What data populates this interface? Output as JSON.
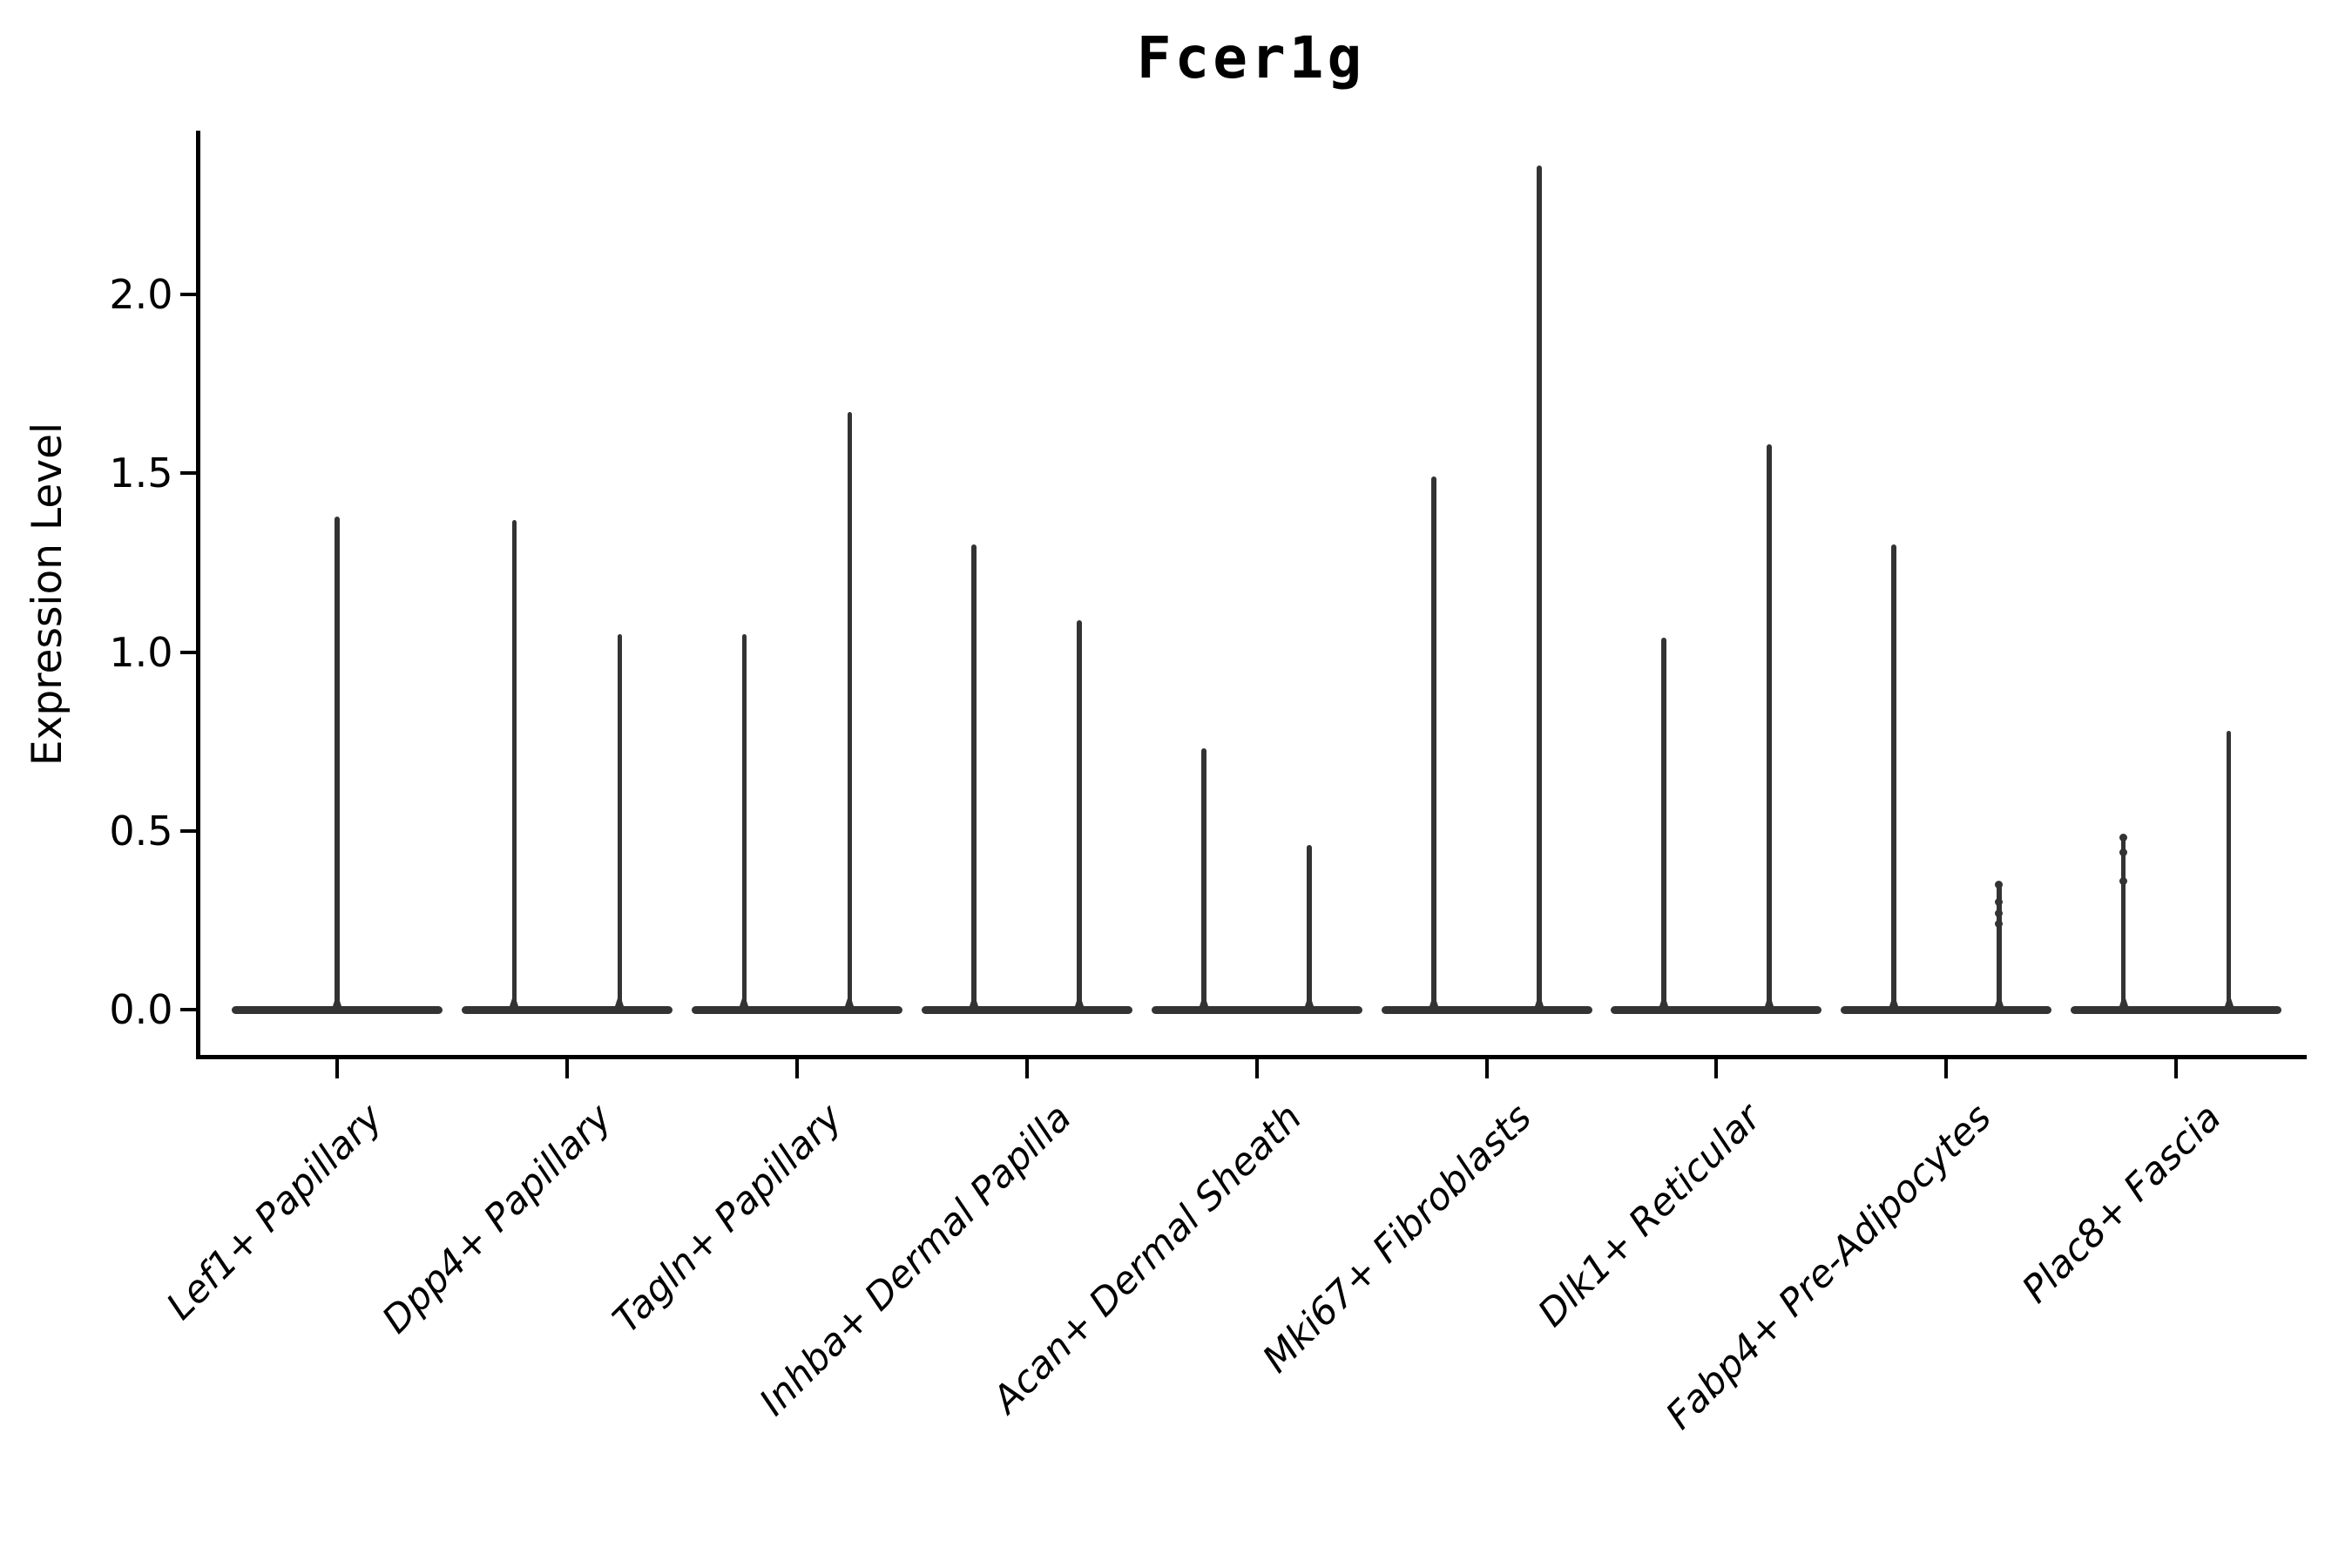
{
  "page": {
    "background": "#ffffff"
  },
  "header": {
    "title": "Fcer1g"
  },
  "chart_data": {
    "type": "violin",
    "title": "Fcer1g",
    "xlabel": "",
    "ylabel": "Expression Level",
    "ylim": [
      -0.13,
      2.46
    ],
    "yticks": [
      0.0,
      0.5,
      1.0,
      1.5,
      2.0
    ],
    "grid": false,
    "legend": "none",
    "x_tick_rotation": 45,
    "shape_note": "each violin's density mass sits at 0 (wide flat base) with a thin spike rising to the group maximum",
    "categories": [
      "Lef1+ Papillary",
      "Dpp4+ Papillary",
      "Tagln+ Papillary",
      "Inhba+ Dermal Papilla",
      "Acan+ Dermal Sheath",
      "Mki67+ Fibroblasts",
      "Dlk1+ Reticular",
      "Fabp4+ Pre-Adipocytes",
      "Plac8+ Fascia"
    ],
    "violins": [
      {
        "category": "Lef1+ Papillary",
        "maxima": [
          1.38
        ],
        "dots": [
          []
        ]
      },
      {
        "category": "Dpp4+ Papillary",
        "maxima": [
          1.37,
          1.05
        ],
        "dots": [
          [],
          []
        ]
      },
      {
        "category": "Tagln+ Papillary",
        "maxima": [
          1.05,
          1.67
        ],
        "dots": [
          [],
          []
        ]
      },
      {
        "category": "Inhba+ Dermal Papilla",
        "maxima": [
          1.3,
          1.09
        ],
        "dots": [
          [],
          []
        ]
      },
      {
        "category": "Acan+ Dermal Sheath",
        "maxima": [
          0.73,
          0.46
        ],
        "dots": [
          [],
          []
        ]
      },
      {
        "category": "Mki67+ Fibroblasts",
        "maxima": [
          1.49,
          2.36
        ],
        "dots": [
          [],
          []
        ]
      },
      {
        "category": "Dlk1+ Reticular",
        "maxima": [
          1.04,
          1.58
        ],
        "dots": [
          [],
          []
        ]
      },
      {
        "category": "Fabp4+ Pre-Adipocytes",
        "maxima": [
          1.3,
          0.35
        ],
        "dots": [
          [],
          [
            0.35,
            0.3,
            0.27,
            0.24
          ]
        ]
      },
      {
        "category": "Plac8+ Fascia",
        "maxima": [
          0.48,
          0.78
        ],
        "dots": [
          [
            0.48,
            0.44,
            0.36
          ],
          []
        ]
      }
    ]
  },
  "style": {
    "violin_color": "#333333",
    "axis_color": "#000000",
    "text_color": "#000000"
  }
}
